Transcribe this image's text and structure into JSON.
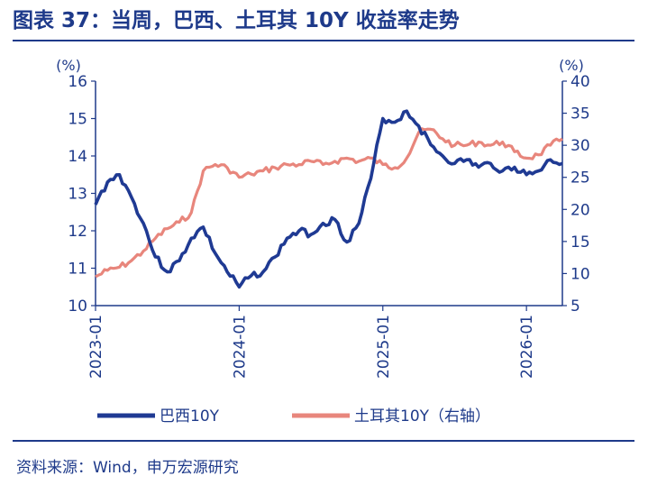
{
  "title": "图表 37：当周，巴西、土耳其 10Y 收益率走势",
  "source": "资料来源：Wind，申万宏源研究",
  "colors": {
    "brazil": "#1f3a93",
    "turkey": "#e8867c",
    "axis": "#1e3a8a"
  },
  "chart_data": {
    "type": "line",
    "title": "",
    "left_axis": {
      "unit": "(%)",
      "min": 10,
      "max": 16,
      "ticks": [
        10,
        11,
        12,
        13,
        14,
        15,
        16
      ]
    },
    "right_axis": {
      "unit": "(%)",
      "min": 5,
      "max": 40,
      "ticks": [
        5,
        10,
        15,
        20,
        25,
        30,
        35,
        40
      ]
    },
    "x_axis": {
      "start": "2023-01",
      "end": "2026-04",
      "ticks": [
        "2023-01",
        "2024-01",
        "2025-01",
        "2026-01"
      ]
    },
    "grid": false,
    "legend_position": "bottom",
    "series": [
      {
        "name": "巴西10Y",
        "axis": "left",
        "x": [
          "2023-01",
          "2023-02",
          "2023-03",
          "2023-04",
          "2023-05",
          "2023-06",
          "2023-07",
          "2023-08",
          "2023-09",
          "2023-10",
          "2023-11",
          "2023-12",
          "2024-01",
          "2024-02",
          "2024-03",
          "2024-04",
          "2024-05",
          "2024-06",
          "2024-07",
          "2024-08",
          "2024-09",
          "2024-10",
          "2024-11",
          "2024-12",
          "2025-01",
          "2025-02",
          "2025-03",
          "2025-04",
          "2025-05",
          "2025-06",
          "2025-07",
          "2025-08",
          "2025-09",
          "2025-10",
          "2025-11",
          "2025-12",
          "2026-01",
          "2026-02",
          "2026-03",
          "2026-04"
        ],
        "values": [
          12.7,
          13.3,
          13.5,
          12.9,
          12.2,
          11.3,
          10.9,
          11.2,
          11.8,
          12.1,
          11.4,
          10.9,
          10.5,
          10.8,
          10.9,
          11.3,
          11.8,
          12.0,
          11.9,
          12.2,
          12.3,
          11.7,
          12.2,
          13.4,
          15.0,
          14.9,
          15.2,
          14.8,
          14.3,
          14.0,
          13.8,
          13.9,
          13.7,
          13.8,
          13.6,
          13.7,
          13.5,
          13.6,
          13.9,
          13.8
        ]
      },
      {
        "name": "土耳其10Y（右轴）",
        "axis": "right",
        "x": [
          "2023-01",
          "2023-02",
          "2023-03",
          "2023-04",
          "2023-05",
          "2023-06",
          "2023-07",
          "2023-08",
          "2023-09",
          "2023-10",
          "2023-11",
          "2023-12",
          "2024-01",
          "2024-02",
          "2024-03",
          "2024-04",
          "2024-05",
          "2024-06",
          "2024-07",
          "2024-08",
          "2024-09",
          "2024-10",
          "2024-11",
          "2024-12",
          "2025-01",
          "2025-02",
          "2025-03",
          "2025-04",
          "2025-05",
          "2025-06",
          "2025-07",
          "2025-08",
          "2025-09",
          "2025-10",
          "2025-11",
          "2025-12",
          "2026-01",
          "2026-02",
          "2026-03",
          "2026-04"
        ],
        "values": [
          9.5,
          10.5,
          11.0,
          12.0,
          13.5,
          15.5,
          17.0,
          18.0,
          19.5,
          26.0,
          27.0,
          26.5,
          25.0,
          25.5,
          26.0,
          26.5,
          27.0,
          27.0,
          27.5,
          27.0,
          27.5,
          28.0,
          27.5,
          28.0,
          27.0,
          26.5,
          28.0,
          32.0,
          32.5,
          31.0,
          30.0,
          30.0,
          30.5,
          30.0,
          30.5,
          29.0,
          28.0,
          28.5,
          30.0,
          31.0
        ]
      }
    ]
  }
}
